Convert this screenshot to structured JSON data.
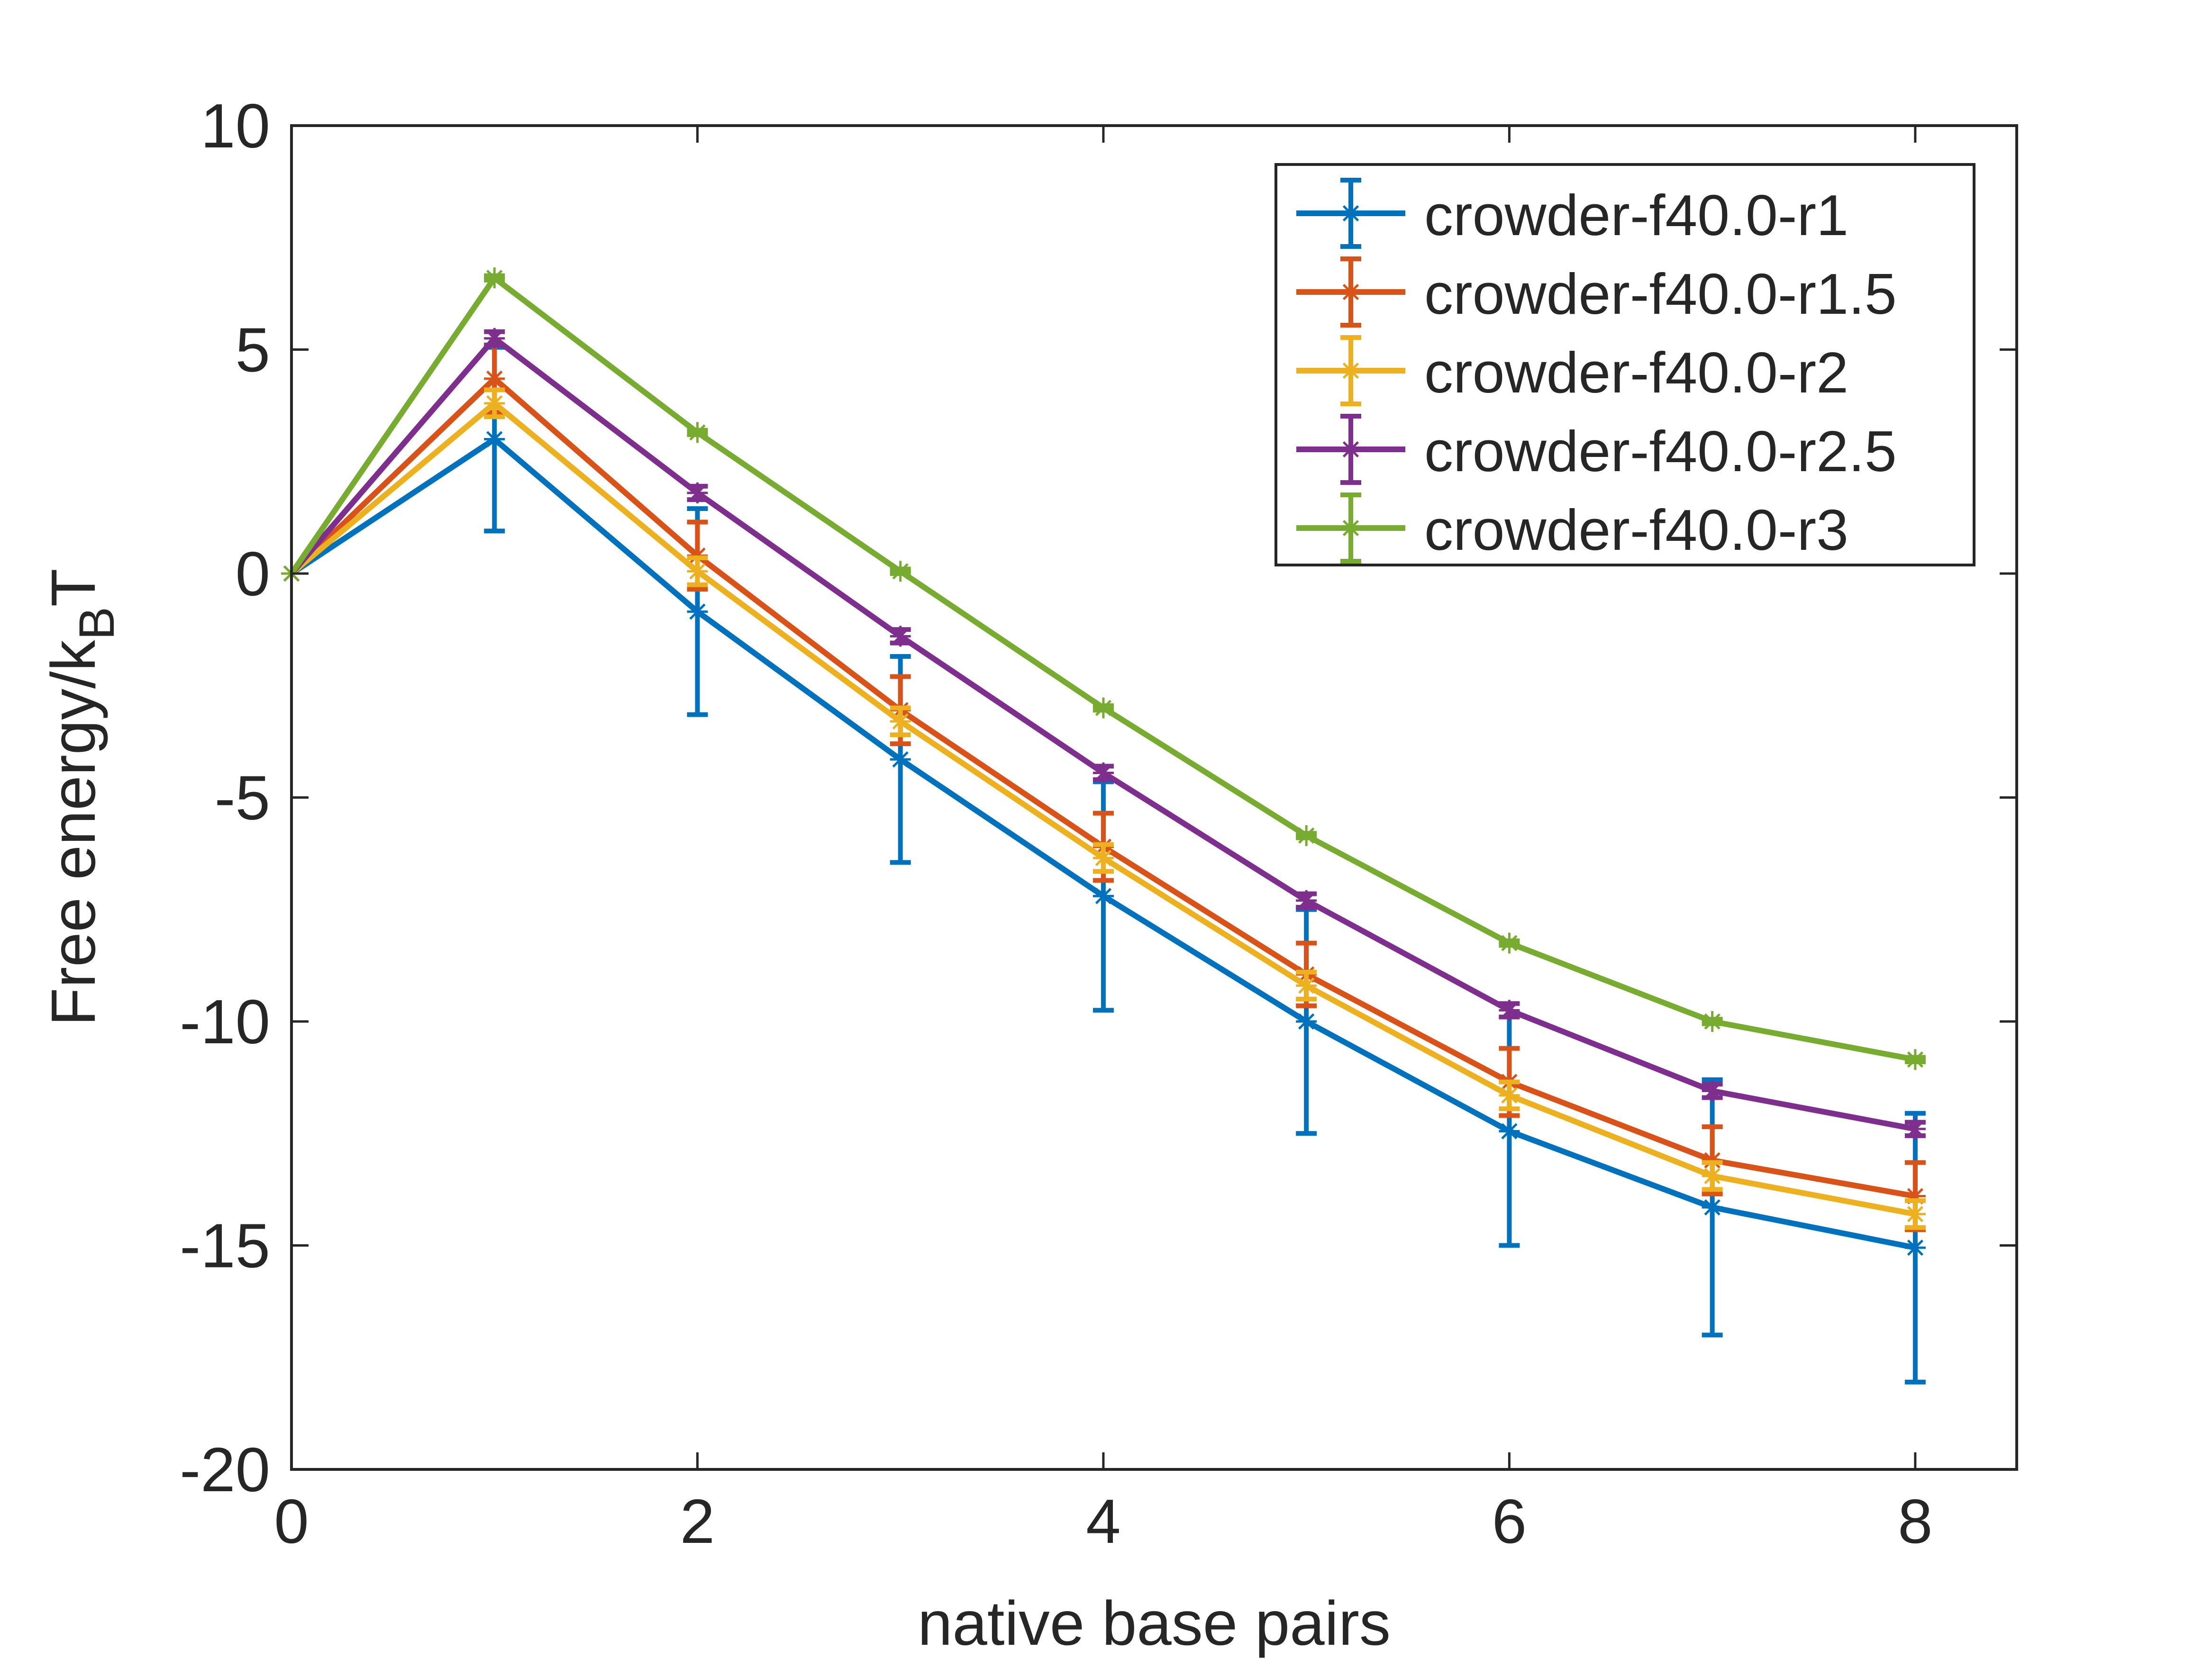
{
  "chart_data": {
    "type": "line",
    "title": "",
    "xlabel": "native base pairs",
    "ylabel": {
      "main": "Free energy/k",
      "sub": "B",
      "tail": "T"
    },
    "xlim": [
      0,
      8.5
    ],
    "ylim": [
      -20,
      10
    ],
    "xticks": [
      0,
      2,
      4,
      6,
      8
    ],
    "yticks": [
      10,
      5,
      0,
      -5,
      -10,
      -15,
      -20
    ],
    "legend_position": "top-right",
    "x": [
      0,
      1,
      2,
      3,
      4,
      5,
      6,
      7,
      8
    ],
    "series": [
      {
        "name": "crowder-f40.0-r1",
        "color": "#0072BD",
        "values": [
          0,
          3.0,
          -0.85,
          -4.15,
          -7.2,
          -10.0,
          -12.45,
          -14.15,
          -15.05
        ],
        "errors": [
          0,
          2.05,
          2.3,
          2.3,
          2.55,
          2.5,
          2.55,
          2.85,
          3.0
        ]
      },
      {
        "name": "crowder-f40.0-r1.5",
        "color": "#D95319",
        "values": [
          0,
          4.35,
          0.4,
          -3.05,
          -6.1,
          -8.95,
          -11.35,
          -13.1,
          -13.9
        ],
        "errors": [
          0,
          0.75,
          0.75,
          0.75,
          0.75,
          0.7,
          0.75,
          0.75,
          0.75
        ]
      },
      {
        "name": "crowder-f40.0-r2",
        "color": "#EDB120",
        "values": [
          0,
          3.8,
          0.05,
          -3.3,
          -6.35,
          -9.2,
          -11.65,
          -13.45,
          -14.3
        ],
        "errors": [
          0,
          0.3,
          0.3,
          0.3,
          0.3,
          0.3,
          0.3,
          0.3,
          0.3
        ]
      },
      {
        "name": "crowder-f40.0-r2.5",
        "color": "#7E2F8E",
        "values": [
          0,
          5.25,
          1.8,
          -1.4,
          -4.45,
          -7.3,
          -9.75,
          -11.55,
          -12.4
        ],
        "errors": [
          0,
          0.15,
          0.15,
          0.15,
          0.15,
          0.15,
          0.15,
          0.15,
          0.15
        ]
      },
      {
        "name": "crowder-f40.0-r3",
        "color": "#77AC30",
        "values": [
          0,
          6.6,
          3.15,
          0.05,
          -3.0,
          -5.85,
          -8.25,
          -10.0,
          -10.85
        ],
        "errors": [
          0,
          0.05,
          0.05,
          0.05,
          0.05,
          0.05,
          0.05,
          0.05,
          0.05
        ]
      }
    ]
  }
}
